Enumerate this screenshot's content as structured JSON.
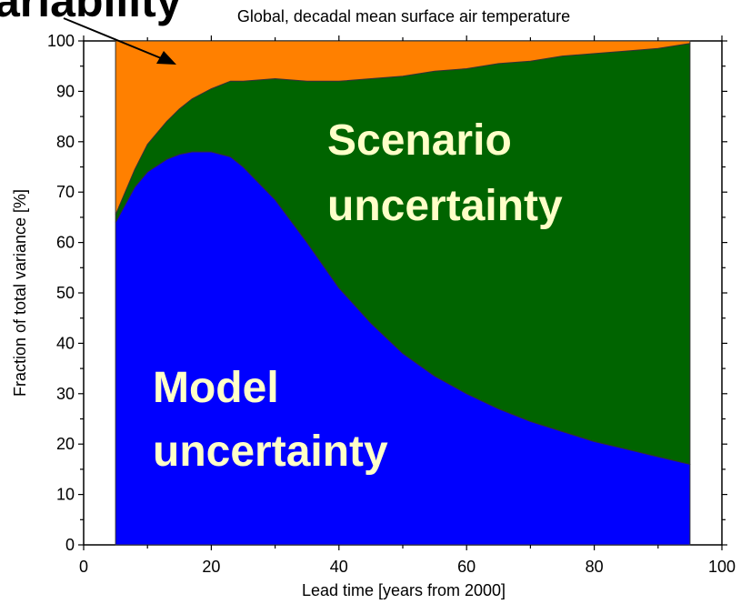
{
  "chart_data": {
    "type": "area",
    "title": "Global, decadal mean surface air temperature",
    "xlabel": "Lead time  [years from 2000]",
    "ylabel": "Fraction of total variance  [%]",
    "xlim": [
      0,
      100
    ],
    "ylim": [
      0,
      100
    ],
    "xticks": [
      "0",
      "20",
      "40",
      "60",
      "80",
      "100"
    ],
    "yticks": [
      "0",
      "10",
      "20",
      "30",
      "40",
      "50",
      "60",
      "70",
      "80",
      "90",
      "100"
    ],
    "x": [
      5,
      8,
      10,
      13,
      15,
      17,
      20,
      23,
      25,
      30,
      35,
      40,
      45,
      50,
      55,
      60,
      65,
      70,
      75,
      80,
      85,
      90,
      95
    ],
    "series": [
      {
        "name": "Model uncertainty",
        "color": "#0000ff",
        "values": [
          64,
          71,
          74,
          76.5,
          77.5,
          78,
          78,
          77,
          75,
          68.5,
          60,
          51,
          44,
          38,
          33.5,
          30,
          27,
          24.5,
          22.5,
          20.5,
          19,
          17.5,
          16
        ]
      },
      {
        "name": "Scenario uncertainty",
        "color": "#006400",
        "values": [
          1.5,
          3.5,
          5.5,
          7.5,
          9,
          10.5,
          12.5,
          15,
          17,
          24,
          32,
          41,
          48.5,
          55,
          60.5,
          64.5,
          68.5,
          71.5,
          74.5,
          77,
          79,
          81,
          83.5
        ]
      },
      {
        "name": "Internal variability",
        "color": "#ff8000",
        "values": [
          34.5,
          25.5,
          20.5,
          16,
          13.5,
          11.5,
          9.5,
          8,
          8,
          7.5,
          8,
          8,
          7.5,
          7,
          6,
          5.5,
          4.5,
          4,
          3,
          2.5,
          2,
          1.5,
          0.5
        ]
      }
    ],
    "annotations": {
      "scenario_line1": "Scenario",
      "scenario_line2": "uncertainty",
      "model_line1": "Model",
      "model_line2": "uncertainty",
      "callout": "ariability"
    }
  }
}
